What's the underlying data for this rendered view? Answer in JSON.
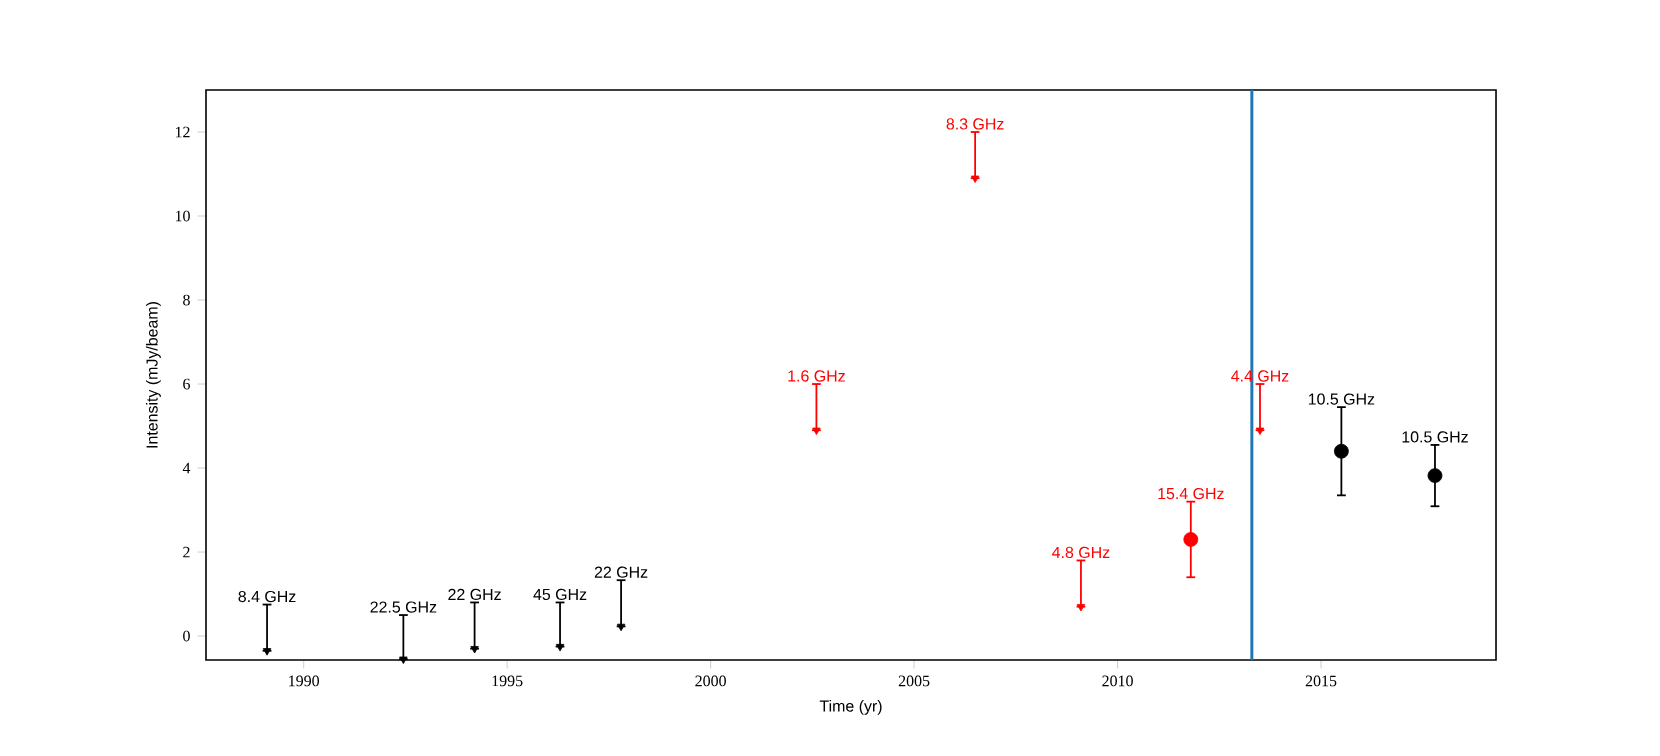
{
  "chart_data": {
    "type": "scatter",
    "xlabel": "Time (yr)",
    "ylabel": "Intensity (mJy/beam)",
    "xlim": [
      1987.6,
      2019.3
    ],
    "ylim": [
      -0.57,
      13.0
    ],
    "xticks": [
      1990,
      1995,
      2000,
      2005,
      2010,
      2015
    ],
    "yticks": [
      0,
      2,
      4,
      6,
      8,
      10,
      12
    ],
    "series": [
      {
        "marker": "triangle",
        "color": "#000000",
        "x": [
          1989.1,
          1992.45,
          1994.2,
          1996.3,
          1997.8
        ],
        "values": [
          -0.35,
          -0.55,
          -0.3,
          -0.25,
          0.23
        ],
        "errors": [
          [
            -0.35,
            0.75
          ],
          [
            -0.55,
            0.5
          ],
          [
            -0.3,
            0.8
          ],
          [
            -0.25,
            0.8
          ],
          [
            0.23,
            1.33
          ]
        ]
      },
      {
        "marker": "triangle",
        "color": "#ff0000",
        "x": [
          2002.6,
          2006.5,
          2009.1,
          2013.5
        ],
        "values": [
          4.9,
          10.9,
          0.7,
          4.9
        ],
        "errors": [
          [
            4.9,
            6.0
          ],
          [
            10.9,
            12.0
          ],
          [
            0.7,
            1.8
          ],
          [
            4.9,
            6.0
          ]
        ]
      },
      {
        "marker": "circle",
        "color": "#ff0000",
        "x": [
          2011.8
        ],
        "values": [
          2.3
        ],
        "errors": [
          0.9
        ]
      },
      {
        "marker": "circle",
        "color": "#000000",
        "x": [
          2015.5,
          2017.8
        ],
        "values": [
          4.4,
          3.82
        ],
        "errors": [
          1.05,
          0.73
        ]
      }
    ],
    "ref_lines": [
      {
        "axis": "x",
        "value": 2013.3,
        "color": "#1f77b4"
      }
    ],
    "annotations": [
      {
        "text": "8.4 GHz",
        "x": 1989.1,
        "y": 0.75
      },
      {
        "text": "22.5 GHz",
        "x": 1992.45,
        "y": 0.5
      },
      {
        "text": "22 GHz",
        "x": 1994.2,
        "y": 0.8
      },
      {
        "text": "45 GHz",
        "x": 1996.3,
        "y": 0.8
      },
      {
        "text": "22 GHz",
        "x": 1997.8,
        "y": 1.33
      },
      {
        "text": "1.6 GHz",
        "x": 2002.6,
        "y": 6.0
      },
      {
        "text": "8.3 GHz",
        "x": 2006.5,
        "y": 12.0
      },
      {
        "text": "4.8 GHz",
        "x": 2009.1,
        "y": 1.8
      },
      {
        "text": "4.4 GHz",
        "x": 2013.5,
        "y": 6.0
      },
      {
        "text": "15.4 GHz",
        "x": 2011.8,
        "y": 3.2
      },
      {
        "text": "10.5 GHz",
        "x": 2015.5,
        "y": 5.45
      },
      {
        "text": "10.5 GHz",
        "x": 2017.8,
        "y": 4.55
      }
    ]
  }
}
